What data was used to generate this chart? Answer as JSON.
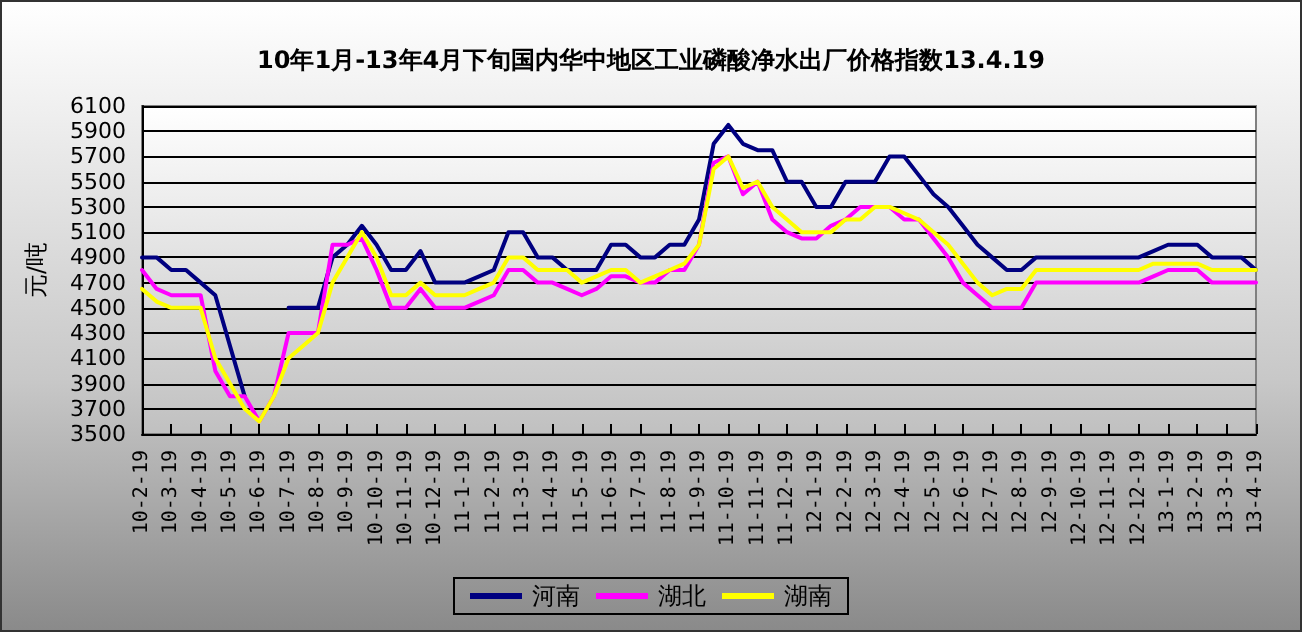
{
  "chart_data": {
    "type": "line",
    "title": "10年1月-13年4月下旬国内华中地区工业磷酸净水出厂价格指数13.4.19",
    "ylabel": "元/吨",
    "categories": [
      "10-2-19",
      null,
      "10-3-19",
      null,
      "10-4-19",
      null,
      "10-5-19",
      null,
      "10-6-19",
      null,
      "10-7-19",
      null,
      "10-8-19",
      null,
      "10-9-19",
      null,
      "10-10-19",
      null,
      "10-11-19",
      null,
      "10-12-19",
      null,
      "11-1-19",
      null,
      "11-2-19",
      null,
      "11-3-19",
      null,
      "11-4-19",
      null,
      "11-5-19",
      null,
      "11-6-19",
      null,
      "11-7-19",
      null,
      "11-8-19",
      null,
      "11-9-19",
      null,
      "11-10-19",
      null,
      "11-11-19",
      null,
      "11-12-19",
      null,
      "12-1-19",
      null,
      "12-2-19",
      null,
      "12-3-19",
      null,
      "12-4-19",
      null,
      "12-5-19",
      null,
      "12-6-19",
      null,
      "12-7-19",
      null,
      "12-8-19",
      null,
      "12-9-19",
      null,
      "12-10-19",
      null,
      "12-11-19",
      null,
      "12-12-19",
      null,
      "13-1-19",
      null,
      "13-2-19",
      null,
      "13-3-19",
      null,
      "13-4-19"
    ],
    "series": [
      {
        "name": "河南",
        "color": "#000080",
        "values": [
          4900,
          4900,
          4800,
          4800,
          4700,
          4600,
          4200,
          3800,
          null,
          null,
          4500,
          4500,
          4500,
          4900,
          5000,
          5150,
          5000,
          4800,
          4800,
          4950,
          4700,
          4700,
          4700,
          4750,
          4800,
          5100,
          5100,
          4900,
          4900,
          4800,
          4800,
          4800,
          5000,
          5000,
          4900,
          4900,
          5000,
          5000,
          5200,
          5800,
          5950,
          5800,
          5750,
          5750,
          5500,
          5500,
          5300,
          5300,
          5500,
          5500,
          5500,
          5700,
          5700,
          5550,
          5400,
          5300,
          5150,
          5000,
          4900,
          4800,
          4800,
          4900,
          4900,
          4900,
          4900,
          4900,
          4900,
          4900,
          4900,
          4950,
          5000,
          5000,
          5000,
          4900,
          4900,
          4900,
          4800
        ]
      },
      {
        "name": "湖北",
        "color": "#ff00ff",
        "values": [
          4800,
          4650,
          4600,
          4600,
          4600,
          4000,
          3800,
          3800,
          3600,
          3800,
          4300,
          4300,
          4300,
          5000,
          5000,
          5050,
          4800,
          4500,
          4500,
          4650,
          4500,
          4500,
          4500,
          4550,
          4600,
          4800,
          4800,
          4700,
          4700,
          4650,
          4600,
          4650,
          4750,
          4750,
          4700,
          4700,
          4800,
          4800,
          5000,
          5650,
          5700,
          5400,
          5500,
          5200,
          5100,
          5050,
          5050,
          5150,
          5200,
          5300,
          5300,
          5300,
          5200,
          5200,
          5050,
          4900,
          4700,
          4600,
          4500,
          4500,
          4500,
          4700,
          4700,
          4700,
          4700,
          4700,
          4700,
          4700,
          4700,
          4750,
          4800,
          4800,
          4800,
          4700,
          4700,
          4700,
          4700
        ]
      },
      {
        "name": "湖南",
        "color": "#ffff00",
        "values": [
          4650,
          4550,
          4500,
          4500,
          4500,
          4100,
          3900,
          3700,
          3600,
          3800,
          4100,
          4200,
          4300,
          4700,
          4900,
          5100,
          4900,
          4600,
          4600,
          4700,
          4600,
          4600,
          4600,
          4650,
          4700,
          4900,
          4900,
          4800,
          4800,
          4800,
          4700,
          4750,
          4800,
          4800,
          4700,
          4750,
          4800,
          4850,
          5000,
          5600,
          5700,
          5450,
          5500,
          5300,
          5200,
          5100,
          5100,
          5100,
          5200,
          5200,
          5300,
          5300,
          5250,
          5200,
          5100,
          5000,
          4850,
          4700,
          4600,
          4650,
          4650,
          4800,
          4800,
          4800,
          4800,
          4800,
          4800,
          4800,
          4800,
          4850,
          4850,
          4850,
          4850,
          4800,
          4800,
          4800,
          4800
        ]
      }
    ],
    "ylim": [
      3500,
      6100
    ],
    "yticks": [
      3500,
      3700,
      3900,
      4100,
      4300,
      4500,
      4700,
      4900,
      5100,
      5300,
      5500,
      5700,
      5900,
      6100
    ],
    "grid": "y",
    "legend": "bottom",
    "marker": "none",
    "line_style": "solid"
  }
}
